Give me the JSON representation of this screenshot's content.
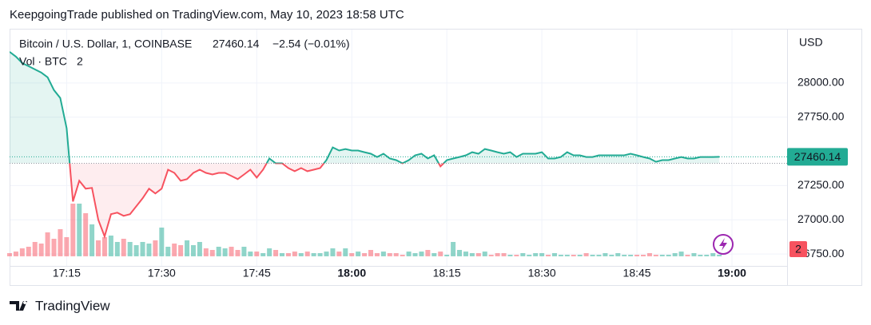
{
  "header": "KeepgoingTrade published on TradingView.com, May 10, 2023 18:58 UTC",
  "footer": "TradingView",
  "chart_data": {
    "type": "line",
    "title": "Bitcoin / U.S. Dollar, 1, COINBASE",
    "change": "−2.54 (−0.01%)",
    "currency": "USD",
    "categories": [
      "17:06",
      "17:07",
      "17:08",
      "17:09",
      "17:10",
      "17:11",
      "17:12",
      "17:13",
      "17:14",
      "17:15",
      "17:16",
      "17:17",
      "17:18",
      "17:19",
      "17:20",
      "17:21",
      "17:22",
      "17:23",
      "17:24",
      "17:25",
      "17:26",
      "17:27",
      "17:28",
      "17:29",
      "17:30",
      "17:31",
      "17:32",
      "17:33",
      "17:34",
      "17:35",
      "17:36",
      "17:37",
      "17:38",
      "17:39",
      "17:40",
      "17:41",
      "17:42",
      "17:43",
      "17:44",
      "17:45",
      "17:46",
      "17:47",
      "17:48",
      "17:49",
      "17:50",
      "17:51",
      "17:52",
      "17:53",
      "17:54",
      "17:55",
      "17:56",
      "17:57",
      "17:58",
      "17:59",
      "18:00",
      "18:01",
      "18:02",
      "18:03",
      "18:04",
      "18:05",
      "18:06",
      "18:07",
      "18:08",
      "18:09",
      "18:10",
      "18:11",
      "18:12",
      "18:13",
      "18:14",
      "18:15",
      "18:16",
      "18:17",
      "18:18",
      "18:19",
      "18:20",
      "18:21",
      "18:22",
      "18:23",
      "18:24",
      "18:25",
      "18:26",
      "18:27",
      "18:28",
      "18:29",
      "18:30",
      "18:31",
      "18:32",
      "18:33",
      "18:34",
      "18:35",
      "18:36",
      "18:37",
      "18:38",
      "18:39",
      "18:40",
      "18:41",
      "18:42",
      "18:43",
      "18:44",
      "18:45",
      "18:46",
      "18:47",
      "18:48",
      "18:49",
      "18:50",
      "18:51",
      "18:52",
      "18:53",
      "18:54",
      "18:55",
      "18:56",
      "18:57",
      "18:58"
    ],
    "series": [
      {
        "name": "Bitcoin / U.S. Dollar",
        "values": [
          28227,
          28192,
          28145,
          28122,
          28099,
          28076,
          28041,
          27948,
          27890,
          27669,
          27134,
          27285,
          27227,
          27233,
          27000,
          26878,
          27041,
          27052,
          27029,
          27041,
          27099,
          27157,
          27227,
          27192,
          27227,
          27366,
          27343,
          27285,
          27297,
          27343,
          27366,
          27343,
          27331,
          27343,
          27343,
          27320,
          27297,
          27331,
          27366,
          27308,
          27366,
          27448,
          27413,
          27413,
          27378,
          27355,
          27378,
          27355,
          27366,
          27378,
          27436,
          27529,
          27506,
          27517,
          27506,
          27506,
          27494,
          27483,
          27459,
          27483,
          27448,
          27436,
          27413,
          27436,
          27471,
          27483,
          27448,
          27471,
          27390,
          27436,
          27448,
          27459,
          27471,
          27494,
          27483,
          27517,
          27506,
          27494,
          27483,
          27494,
          27459,
          27483,
          27483,
          27483,
          27494,
          27448,
          27448,
          27459,
          27494,
          27471,
          27471,
          27459,
          27459,
          27471,
          27471,
          27471,
          27471,
          27471,
          27483,
          27471,
          27459,
          27448,
          27424,
          27436,
          27436,
          27448,
          27459,
          27448,
          27448,
          27459,
          27459,
          27459,
          27460.14
        ]
      }
    ],
    "volume": {
      "name": "Vol · BTC",
      "values": [
        4,
        6,
        10,
        12,
        18,
        16,
        30,
        22,
        34,
        24,
        66,
        66,
        54,
        40,
        20,
        24,
        26,
        18,
        22,
        18,
        14,
        18,
        16,
        20,
        36,
        12,
        16,
        14,
        20,
        14,
        18,
        10,
        8,
        12,
        10,
        12,
        8,
        12,
        6,
        6,
        4,
        10,
        8,
        4,
        4,
        6,
        4,
        6,
        4,
        4,
        6,
        10,
        6,
        10,
        4,
        6,
        4,
        8,
        4,
        6,
        4,
        4,
        2,
        6,
        4,
        6,
        8,
        4,
        6,
        2,
        18,
        8,
        6,
        4,
        4,
        6,
        2,
        4,
        4,
        2,
        2,
        4,
        2,
        4,
        4,
        2,
        4,
        2,
        2,
        2,
        2,
        4,
        2,
        2,
        4,
        2,
        4,
        2,
        2,
        2,
        2,
        4,
        2,
        2,
        2,
        4,
        6,
        2,
        4,
        2,
        2,
        4,
        2
      ]
    },
    "baseline": 27413,
    "up_color": "#22ab94",
    "down_color": "#f7525f",
    "ylim": [
      26663,
      28390
    ],
    "yticks": [
      {
        "value": 26750,
        "label": "26750.00"
      },
      {
        "value": 27000,
        "label": "27000.00"
      },
      {
        "value": 27250,
        "label": "27250.00"
      },
      {
        "value": 27750,
        "label": "27750.00"
      },
      {
        "value": 28000,
        "label": "28000.00"
      }
    ],
    "xticks": [
      "17:15",
      "17:30",
      "17:45",
      "18:00",
      "18:15",
      "18:30",
      "18:45",
      "19:00"
    ],
    "grid": true
  }
}
